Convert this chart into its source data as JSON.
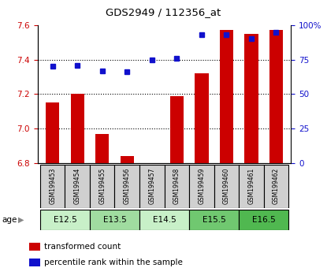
{
  "title": "GDS2949 / 112356_at",
  "samples": [
    "GSM199453",
    "GSM199454",
    "GSM199455",
    "GSM199456",
    "GSM199457",
    "GSM199458",
    "GSM199459",
    "GSM199460",
    "GSM199461",
    "GSM199462"
  ],
  "transformed_counts": [
    7.15,
    7.2,
    6.97,
    6.84,
    6.8,
    7.19,
    7.32,
    7.57,
    7.55,
    7.57
  ],
  "percentile_ranks": [
    70,
    71,
    67,
    66,
    75,
    76,
    93,
    93,
    90,
    95
  ],
  "ylim_left": [
    6.8,
    7.6
  ],
  "ylim_right": [
    0,
    100
  ],
  "yticks_left": [
    6.8,
    7.0,
    7.2,
    7.4,
    7.6
  ],
  "yticks_right": [
    0,
    25,
    50,
    75,
    100
  ],
  "age_groups": [
    {
      "label": "E12.5",
      "start": 0,
      "end": 1,
      "color": "#c8f0c8"
    },
    {
      "label": "E13.5",
      "start": 2,
      "end": 3,
      "color": "#a0dca0"
    },
    {
      "label": "E14.5",
      "start": 4,
      "end": 5,
      "color": "#c8f0c8"
    },
    {
      "label": "E15.5",
      "start": 6,
      "end": 7,
      "color": "#70c870"
    },
    {
      "label": "E16.5",
      "start": 8,
      "end": 9,
      "color": "#50b850"
    }
  ],
  "bar_color": "#cc0000",
  "dot_color": "#1111cc",
  "bar_width": 0.55,
  "sample_box_color": "#d0d0d0",
  "legend_red_label": "transformed count",
  "legend_blue_label": "percentile rank within the sample",
  "age_label": "age"
}
